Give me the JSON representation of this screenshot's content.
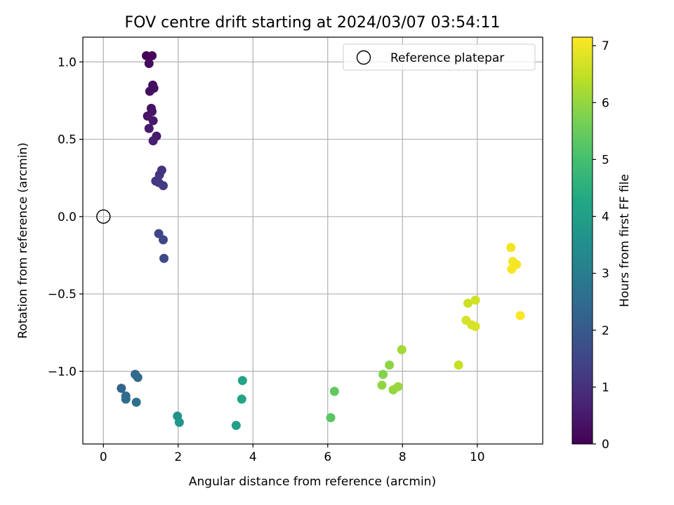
{
  "chart_data": {
    "type": "scatter",
    "title": "FOV centre drift starting at 2024/03/07 03:54:11",
    "xlabel": "Angular distance from reference (arcmin)",
    "ylabel": "Rotation from reference (arcmin)",
    "xlim": [
      -0.55,
      11.75
    ],
    "ylim": [
      -1.47,
      1.16
    ],
    "xticks": [
      0,
      2,
      4,
      6,
      8,
      10
    ],
    "xtick_labels": [
      "0",
      "2",
      "4",
      "6",
      "8",
      "10"
    ],
    "yticks": [
      -1.0,
      -0.5,
      0.0,
      0.5,
      1.0
    ],
    "ytick_labels": [
      "−1.0",
      "−0.5",
      "0.0",
      "0.5",
      "1.0"
    ],
    "grid": true,
    "colorbar": {
      "label": "Hours from first FF file",
      "range": [
        0,
        7.15
      ],
      "ticks": [
        0,
        1,
        2,
        3,
        4,
        5,
        6,
        7
      ],
      "tick_labels": [
        "0",
        "1",
        "2",
        "3",
        "4",
        "5",
        "6",
        "7"
      ],
      "colormap": "viridis"
    },
    "legend": {
      "position": "top-right",
      "entries": [
        {
          "label": "Reference platepar",
          "marker": "open-circle"
        }
      ]
    },
    "reference_point": {
      "x": 0.0,
      "y": 0.0
    },
    "series": [
      {
        "points": [
          {
            "x": 1.15,
            "y": 1.04,
            "c": 0.05
          },
          {
            "x": 1.3,
            "y": 1.04,
            "c": 0.15
          },
          {
            "x": 1.22,
            "y": 0.99,
            "c": 0.2
          },
          {
            "x": 1.32,
            "y": 0.85,
            "c": 0.25
          },
          {
            "x": 1.35,
            "y": 0.83,
            "c": 0.3
          },
          {
            "x": 1.24,
            "y": 0.81,
            "c": 0.3
          },
          {
            "x": 1.28,
            "y": 0.7,
            "c": 0.35
          },
          {
            "x": 1.3,
            "y": 0.68,
            "c": 0.4
          },
          {
            "x": 1.18,
            "y": 0.65,
            "c": 0.4
          },
          {
            "x": 1.33,
            "y": 0.62,
            "c": 0.45
          },
          {
            "x": 1.22,
            "y": 0.57,
            "c": 0.5
          },
          {
            "x": 1.42,
            "y": 0.52,
            "c": 0.55
          },
          {
            "x": 1.33,
            "y": 0.49,
            "c": 0.6
          },
          {
            "x": 1.56,
            "y": 0.3,
            "c": 1.05
          },
          {
            "x": 1.5,
            "y": 0.27,
            "c": 1.1
          },
          {
            "x": 1.4,
            "y": 0.23,
            "c": 1.15
          },
          {
            "x": 1.48,
            "y": 0.22,
            "c": 1.2
          },
          {
            "x": 1.6,
            "y": 0.2,
            "c": 1.25
          },
          {
            "x": 1.48,
            "y": -0.11,
            "c": 1.45
          },
          {
            "x": 1.6,
            "y": -0.15,
            "c": 1.5
          },
          {
            "x": 1.62,
            "y": -0.27,
            "c": 1.6
          },
          {
            "x": 0.48,
            "y": -1.11,
            "c": 2.3
          },
          {
            "x": 0.85,
            "y": -1.02,
            "c": 2.4
          },
          {
            "x": 0.92,
            "y": -1.04,
            "c": 2.45
          },
          {
            "x": 0.6,
            "y": -1.16,
            "c": 2.5
          },
          {
            "x": 0.6,
            "y": -1.18,
            "c": 2.55
          },
          {
            "x": 0.88,
            "y": -1.2,
            "c": 2.65
          },
          {
            "x": 1.98,
            "y": -1.29,
            "c": 3.6
          },
          {
            "x": 2.03,
            "y": -1.33,
            "c": 3.7
          },
          {
            "x": 3.55,
            "y": -1.35,
            "c": 4.0
          },
          {
            "x": 3.72,
            "y": -1.06,
            "c": 4.1
          },
          {
            "x": 3.7,
            "y": -1.18,
            "c": 4.2
          },
          {
            "x": 6.08,
            "y": -1.3,
            "c": 5.3
          },
          {
            "x": 6.18,
            "y": -1.13,
            "c": 5.4
          },
          {
            "x": 7.48,
            "y": -1.02,
            "c": 5.8
          },
          {
            "x": 7.65,
            "y": -0.96,
            "c": 5.9
          },
          {
            "x": 7.45,
            "y": -1.09,
            "c": 5.95
          },
          {
            "x": 7.75,
            "y": -1.12,
            "c": 6.0
          },
          {
            "x": 7.88,
            "y": -1.1,
            "c": 6.05
          },
          {
            "x": 7.98,
            "y": -0.86,
            "c": 6.15
          },
          {
            "x": 9.5,
            "y": -0.96,
            "c": 6.55
          },
          {
            "x": 9.75,
            "y": -0.56,
            "c": 6.6
          },
          {
            "x": 9.95,
            "y": -0.54,
            "c": 6.65
          },
          {
            "x": 9.7,
            "y": -0.67,
            "c": 6.7
          },
          {
            "x": 9.85,
            "y": -0.7,
            "c": 6.72
          },
          {
            "x": 9.95,
            "y": -0.71,
            "c": 6.75
          },
          {
            "x": 10.9,
            "y": -0.2,
            "c": 7.0
          },
          {
            "x": 10.95,
            "y": -0.29,
            "c": 7.05
          },
          {
            "x": 11.05,
            "y": -0.31,
            "c": 7.05
          },
          {
            "x": 10.92,
            "y": -0.34,
            "c": 7.08
          },
          {
            "x": 11.15,
            "y": -0.64,
            "c": 7.1
          }
        ]
      }
    ]
  }
}
